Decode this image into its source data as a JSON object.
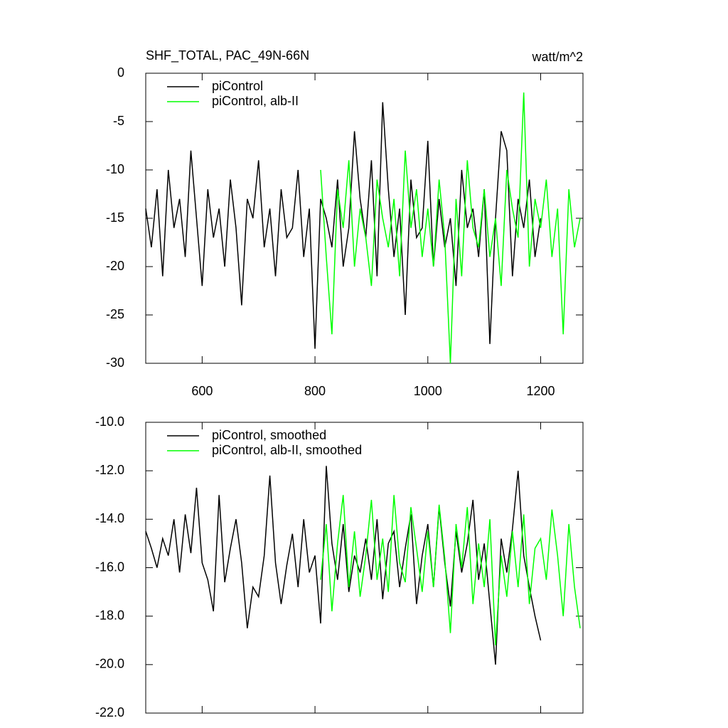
{
  "chart_data": [
    {
      "type": "line",
      "title": "SHF_TOTAL, PAC_49N-66N",
      "units": "watt/m^2",
      "x": [
        500,
        510,
        520,
        530,
        540,
        550,
        560,
        570,
        580,
        590,
        600,
        610,
        620,
        630,
        640,
        650,
        660,
        670,
        680,
        690,
        700,
        710,
        720,
        730,
        740,
        750,
        760,
        770,
        780,
        790,
        800,
        810,
        820,
        830,
        840,
        850,
        860,
        870,
        880,
        890,
        900,
        910,
        920,
        930,
        940,
        950,
        960,
        970,
        980,
        990,
        1000,
        1010,
        1020,
        1030,
        1040,
        1050,
        1060,
        1070,
        1080,
        1090,
        1100,
        1110,
        1120,
        1130,
        1140,
        1150,
        1160,
        1170,
        1180,
        1190,
        1200,
        1210,
        1220,
        1230,
        1240,
        1250,
        1260,
        1270
      ],
      "series": [
        {
          "name": "piControl",
          "color": "#000000",
          "values": [
            -14,
            -18,
            -12,
            -21,
            -10,
            -16,
            -13,
            -19,
            -8,
            -15,
            -22,
            -12,
            -17,
            -14,
            -20,
            -11,
            -16,
            -24,
            -13,
            -15,
            -9,
            -18,
            -14,
            -21,
            -12,
            -17,
            -16,
            -10,
            -19,
            -14,
            -28.5,
            -13,
            -15,
            -18,
            -11,
            -20,
            -16,
            -6,
            -13,
            -17,
            -9,
            -21,
            -3,
            -12,
            -19,
            -14,
            -25,
            -11,
            -17,
            -16,
            -7,
            -20,
            -13,
            -18,
            -15,
            -22,
            -10,
            -16,
            -14,
            -19,
            -12,
            -28,
            -15,
            -6,
            -8,
            -21,
            -13,
            -16,
            -11,
            -19,
            -15,
            null,
            null,
            null,
            null,
            null,
            null,
            null
          ]
        },
        {
          "name": "piControl, alb-II",
          "color": "#00ff00",
          "values": [
            null,
            null,
            null,
            null,
            null,
            null,
            null,
            null,
            null,
            null,
            null,
            null,
            null,
            null,
            null,
            null,
            null,
            null,
            null,
            null,
            null,
            null,
            null,
            null,
            null,
            null,
            null,
            null,
            null,
            null,
            null,
            -10,
            -19,
            -27,
            -12,
            -16,
            -9,
            -20,
            -14,
            -17,
            -22,
            -11,
            -15,
            -18,
            -13,
            -21,
            -8,
            -16,
            -12,
            -19,
            -14,
            -20,
            -11,
            -17,
            -30,
            -13,
            -21,
            -9,
            -16,
            -18,
            -12,
            -19,
            -15,
            -22,
            -10,
            -14,
            -17,
            -2,
            -20,
            -13,
            -16,
            -11,
            -19,
            -14,
            -27,
            -12,
            -18,
            -15
          ]
        }
      ],
      "xlim": [
        500,
        1275
      ],
      "xticks": [
        600,
        800,
        1000,
        1200
      ],
      "ylim": [
        -30,
        0
      ],
      "yticks": [
        -30,
        -25,
        -20,
        -15,
        -10,
        -5,
        0
      ],
      "legend": "upper left"
    },
    {
      "type": "line",
      "x": [
        500,
        510,
        520,
        530,
        540,
        550,
        560,
        570,
        580,
        590,
        600,
        610,
        620,
        630,
        640,
        650,
        660,
        670,
        680,
        690,
        700,
        710,
        720,
        730,
        740,
        750,
        760,
        770,
        780,
        790,
        800,
        810,
        820,
        830,
        840,
        850,
        860,
        870,
        880,
        890,
        900,
        910,
        920,
        930,
        940,
        950,
        960,
        970,
        980,
        990,
        1000,
        1010,
        1020,
        1030,
        1040,
        1050,
        1060,
        1070,
        1080,
        1090,
        1100,
        1110,
        1120,
        1130,
        1140,
        1150,
        1160,
        1170,
        1180,
        1190,
        1200,
        1210,
        1220,
        1230,
        1240,
        1250,
        1260,
        1270
      ],
      "series": [
        {
          "name": "piControl, smoothed",
          "color": "#000000",
          "values": [
            -14.5,
            -15.2,
            -16,
            -14.8,
            -15.5,
            -14,
            -16.2,
            -13.8,
            -15.4,
            -12.7,
            -15.8,
            -16.5,
            -17.8,
            -13,
            -16.6,
            -15.2,
            -14,
            -15.8,
            -18.5,
            -16.8,
            -17.2,
            -15.5,
            -12.2,
            -15.8,
            -17.5,
            -15.9,
            -14.6,
            -16.8,
            -14,
            -16.2,
            -15.5,
            -18.3,
            -11.8,
            -15,
            -16.5,
            -14.2,
            -17,
            -15.5,
            -16.2,
            -14.8,
            -16.5,
            -14,
            -17.3,
            -15,
            -14.5,
            -16.8,
            -15.2,
            -13.8,
            -17.5,
            -15.5,
            -14.2,
            -16.8,
            -13.5,
            -15.8,
            -17.6,
            -14.5,
            -16.2,
            -15,
            -13.2,
            -16.5,
            -15,
            -17.5,
            -20,
            -14.8,
            -16.2,
            -14.4,
            -12,
            -15.5,
            -16.8,
            -18,
            -19,
            null,
            null,
            null,
            null,
            null,
            null,
            null
          ]
        },
        {
          "name": "piControl, alb-II, smoothed",
          "color": "#00ff00",
          "values": [
            null,
            null,
            null,
            null,
            null,
            null,
            null,
            null,
            null,
            null,
            null,
            null,
            null,
            null,
            null,
            null,
            null,
            null,
            null,
            null,
            null,
            null,
            null,
            null,
            null,
            null,
            null,
            null,
            null,
            null,
            null,
            -16.5,
            -14.2,
            -17.8,
            -15,
            -13,
            -16.8,
            -14.5,
            -17.2,
            -15.5,
            -13.2,
            -16.5,
            -14.8,
            -17,
            -13,
            -15.8,
            -16.6,
            -13.5,
            -15.2,
            -17,
            -14.5,
            -16.8,
            -13.4,
            -15.6,
            -18.7,
            -14.2,
            -16,
            -13.5,
            -17.5,
            -15,
            -16.8,
            -14,
            -19.2,
            -15.5,
            -17.2,
            -14.5,
            -16.8,
            -13.8,
            -17.5,
            -15.2,
            -14.8,
            -16.5,
            -13.6,
            -15.5,
            -18,
            -14.2,
            -16.8,
            -18.5
          ]
        }
      ],
      "xlim": [
        500,
        1275
      ],
      "xticks": [
        600,
        800,
        1000,
        1200
      ],
      "ylim": [
        -22,
        -10
      ],
      "yticks": [
        {
          "value": -22,
          "label": "-22.0"
        },
        {
          "value": -20,
          "label": "-20.0"
        },
        {
          "value": -18,
          "label": "-18.0"
        },
        {
          "value": -16,
          "label": "-16.0"
        },
        {
          "value": -14,
          "label": "-14.0"
        },
        {
          "value": -12,
          "label": "-12.0"
        },
        {
          "value": -10,
          "label": "-10.0"
        }
      ],
      "legend": "upper left"
    }
  ]
}
